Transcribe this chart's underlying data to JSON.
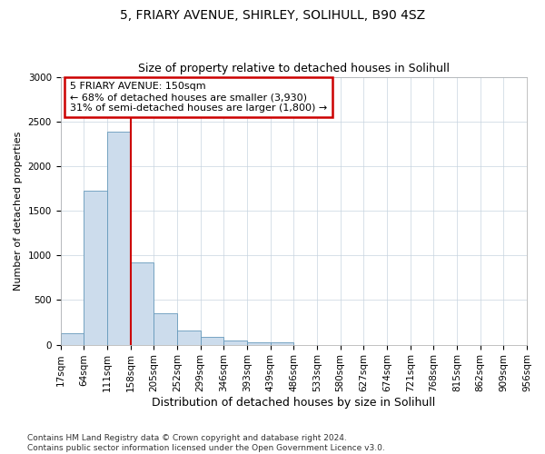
{
  "title": "5, FRIARY AVENUE, SHIRLEY, SOLIHULL, B90 4SZ",
  "subtitle": "Size of property relative to detached houses in Solihull",
  "xlabel": "Distribution of detached houses by size in Solihull",
  "ylabel": "Number of detached properties",
  "bar_color": "#ccdcec",
  "bar_edge_color": "#6699bb",
  "bar_values": [
    130,
    1720,
    2390,
    920,
    350,
    155,
    85,
    45,
    30,
    30,
    0,
    0,
    0,
    0,
    0,
    0,
    0,
    0,
    0,
    0
  ],
  "bin_labels": [
    "17sqm",
    "64sqm",
    "111sqm",
    "158sqm",
    "205sqm",
    "252sqm",
    "299sqm",
    "346sqm",
    "393sqm",
    "439sqm",
    "486sqm",
    "533sqm",
    "580sqm",
    "627sqm",
    "674sqm",
    "721sqm",
    "768sqm",
    "815sqm",
    "862sqm",
    "909sqm",
    "956sqm"
  ],
  "property_line_x": 3,
  "annotation_text": "5 FRIARY AVENUE: 150sqm\n← 68% of detached houses are smaller (3,930)\n31% of semi-detached houses are larger (1,800) →",
  "annotation_box_color": "#ffffff",
  "annotation_box_edge": "#cc0000",
  "vline_color": "#cc0000",
  "ylim": [
    0,
    3000
  ],
  "yticks": [
    0,
    500,
    1000,
    1500,
    2000,
    2500,
    3000
  ],
  "footer_line1": "Contains HM Land Registry data © Crown copyright and database right 2024.",
  "footer_line2": "Contains public sector information licensed under the Open Government Licence v3.0.",
  "background_color": "#ffffff",
  "plot_bg_color": "#ffffff",
  "title_fontsize": 10,
  "xlabel_fontsize": 9,
  "ylabel_fontsize": 8,
  "tick_fontsize": 7.5,
  "footer_fontsize": 6.5
}
